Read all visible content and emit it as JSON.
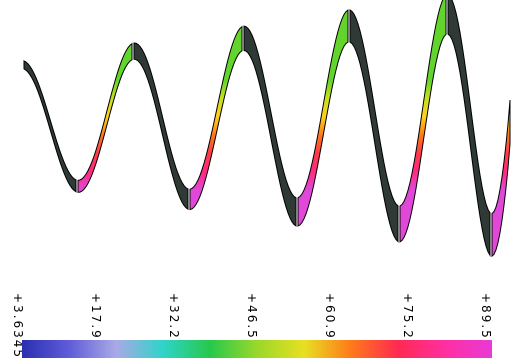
{
  "chart_data": {
    "type": "surface",
    "colormap": "hsv",
    "colorbar": {
      "ticks": [
        "+3.6345",
        "+17.955",
        "+32.276",
        "+46.597",
        "+60.918",
        "+75.238",
        "+89.560"
      ],
      "range": [
        3.6345,
        89.56
      ],
      "colors": [
        "#2a2fb0",
        "#5f5cd8",
        "#a9a9e6",
        "#2fd4c8",
        "#27c84b",
        "#9ad82a",
        "#e8df22",
        "#ff7a1a",
        "#ff2a52",
        "#ff2fa0",
        "#e83ad6"
      ]
    },
    "surface": {
      "back_color": "#2f3a36",
      "front_colors": [
        "#e048d8",
        "#ff2a80",
        "#ff3a4a",
        "#ff7a1a",
        "#ffd21a",
        "#c8e020",
        "#62d42c"
      ]
    }
  }
}
